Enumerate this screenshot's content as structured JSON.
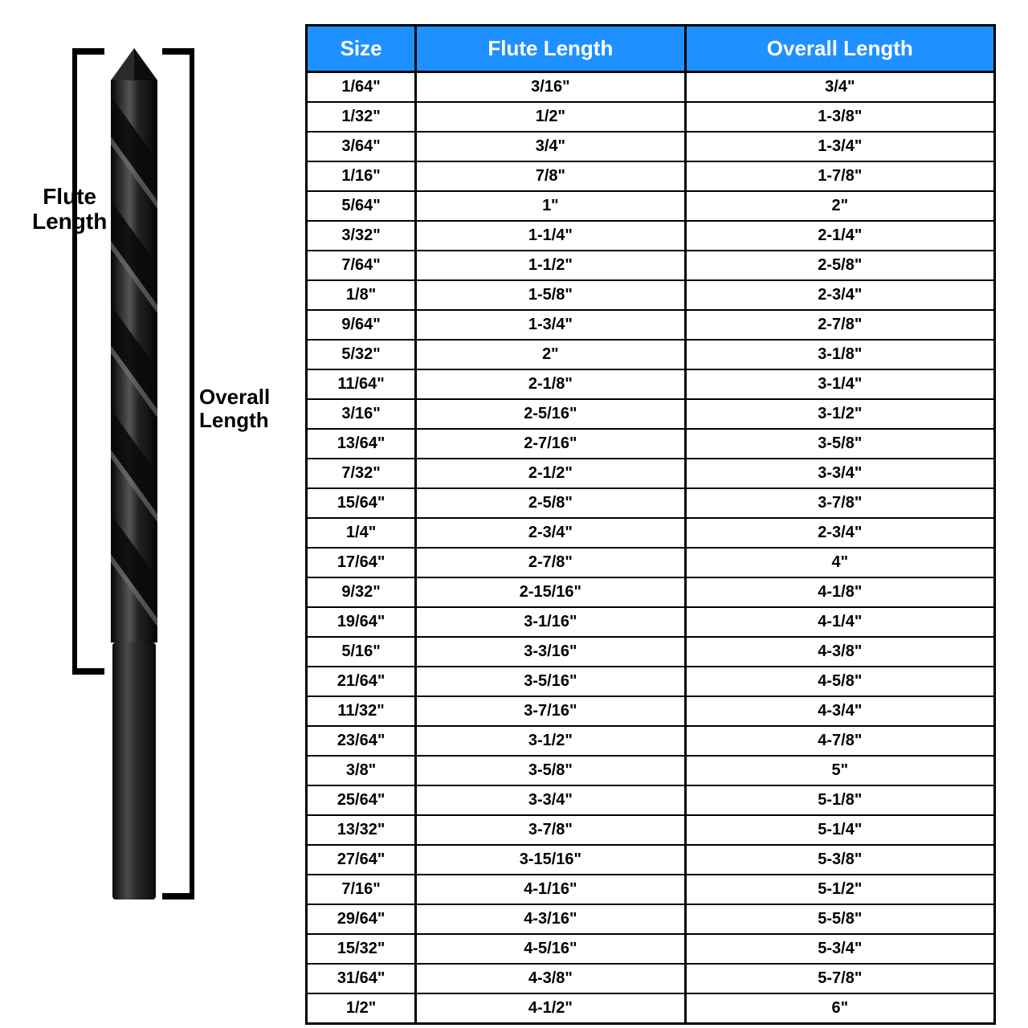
{
  "labels": {
    "flute": "Flute Length",
    "overall": "Overall Length"
  },
  "table": {
    "header_bg": "#1e90ff",
    "header_color": "#ffffff",
    "border_color": "#000000",
    "columns": [
      "Size",
      "Flute Length",
      "Overall Length"
    ],
    "rows": [
      [
        "1/64\"",
        "3/16\"",
        "3/4\""
      ],
      [
        "1/32\"",
        "1/2\"",
        "1-3/8\""
      ],
      [
        "3/64\"",
        "3/4\"",
        "1-3/4\""
      ],
      [
        "1/16\"",
        "7/8\"",
        "1-7/8\""
      ],
      [
        "5/64\"",
        "1\"",
        "2\""
      ],
      [
        "3/32\"",
        "1-1/4\"",
        "2-1/4\""
      ],
      [
        "7/64\"",
        "1-1/2\"",
        "2-5/8\""
      ],
      [
        "1/8\"",
        "1-5/8\"",
        "2-3/4\""
      ],
      [
        "9/64\"",
        "1-3/4\"",
        "2-7/8\""
      ],
      [
        "5/32\"",
        "2\"",
        "3-1/8\""
      ],
      [
        "11/64\"",
        "2-1/8\"",
        "3-1/4\""
      ],
      [
        "3/16\"",
        "2-5/16\"",
        "3-1/2\""
      ],
      [
        "13/64\"",
        "2-7/16\"",
        "3-5/8\""
      ],
      [
        "7/32\"",
        "2-1/2\"",
        "3-3/4\""
      ],
      [
        "15/64\"",
        "2-5/8\"",
        "3-7/8\""
      ],
      [
        "1/4\"",
        "2-3/4\"",
        "2-3/4\""
      ],
      [
        "17/64\"",
        "2-7/8\"",
        "4\""
      ],
      [
        "9/32\"",
        "2-15/16\"",
        "4-1/8\""
      ],
      [
        "19/64\"",
        "3-1/16\"",
        "4-1/4\""
      ],
      [
        "5/16\"",
        "3-3/16\"",
        "4-3/8\""
      ],
      [
        "21/64\"",
        "3-5/16\"",
        "4-5/8\""
      ],
      [
        "11/32\"",
        "3-7/16\"",
        "4-3/4\""
      ],
      [
        "23/64\"",
        "3-1/2\"",
        "4-7/8\""
      ],
      [
        "3/8\"",
        "3-5/8\"",
        "5\""
      ],
      [
        "25/64\"",
        "3-3/4\"",
        "5-1/8\""
      ],
      [
        "13/32\"",
        "3-7/8\"",
        "5-1/4\""
      ],
      [
        "27/64\"",
        "3-15/16\"",
        "5-3/8\""
      ],
      [
        "7/16\"",
        "4-1/16\"",
        "5-1/2\""
      ],
      [
        "29/64\"",
        "4-3/16\"",
        "5-5/8\""
      ],
      [
        "15/32\"",
        "4-5/16\"",
        "5-3/4\""
      ],
      [
        "31/64\"",
        "4-3/8\"",
        "5-7/8\""
      ],
      [
        "1/2\"",
        "4-1/2\"",
        "6\""
      ]
    ]
  },
  "drill_colors": {
    "body_dark": "#1a1a1a",
    "body_mid": "#3a3a3a",
    "highlight": "#6b6b6b"
  }
}
